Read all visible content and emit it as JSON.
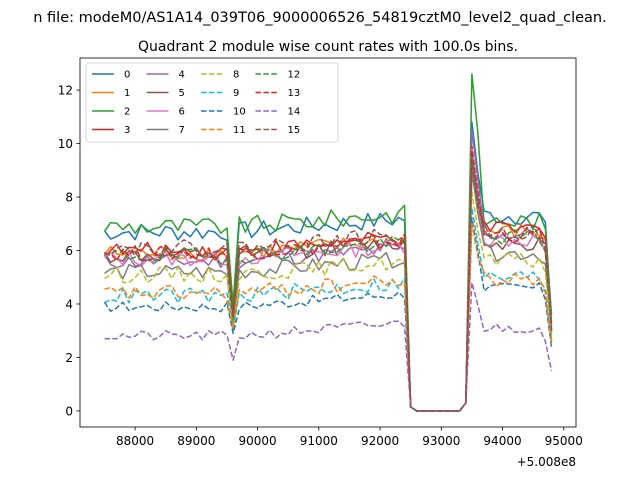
{
  "chart_data": {
    "type": "line",
    "suptitle": "n file: modeM0/AS1A14_039T06_9000006526_54819cztM0_level2_quad_clean.",
    "title": "Quadrant 2 module wise count rates with 100.0s bins.",
    "xlabel": "",
    "ylabel": "",
    "x_offset_label": "+5.008e8",
    "xlim": [
      87100,
      95200
    ],
    "ylim": [
      -0.6,
      13.2
    ],
    "xticks": [
      88000,
      89000,
      90000,
      91000,
      92000,
      93000,
      94000,
      95000
    ],
    "xtick_labels": [
      "88000",
      "89000",
      "90000",
      "91000",
      "92000",
      "93000",
      "94000",
      "95000"
    ],
    "yticks": [
      0,
      2,
      4,
      6,
      8,
      10,
      12
    ],
    "ytick_labels": [
      "0",
      "2",
      "4",
      "6",
      "8",
      "10",
      "12"
    ],
    "x_start": 87500,
    "x_step": 100,
    "legend_position": "upper left",
    "series": [
      {
        "name": "0",
        "color": "#1f77b4",
        "dashed": false,
        "base": 6.7,
        "amp": 0.35,
        "post": 7.3,
        "peak": 10.8,
        "end": 3.3,
        "dip": 3.8
      },
      {
        "name": "1",
        "color": "#ff7f0e",
        "dashed": false,
        "base": 5.9,
        "amp": 0.3,
        "post": 6.7,
        "peak": 9.2,
        "end": 2.6,
        "dip": 3.4
      },
      {
        "name": "2",
        "color": "#2ca02c",
        "dashed": false,
        "base": 6.9,
        "amp": 0.35,
        "post": 7.1,
        "peak": 12.6,
        "end": 3.6,
        "dip": 4.0
      },
      {
        "name": "3",
        "color": "#d62728",
        "dashed": false,
        "base": 6.0,
        "amp": 0.3,
        "post": 6.8,
        "peak": 9.6,
        "end": 3.0,
        "dip": 3.5
      },
      {
        "name": "4",
        "color": "#9467bd",
        "dashed": false,
        "base": 5.6,
        "amp": 0.3,
        "post": 6.6,
        "peak": 10.5,
        "end": 3.1,
        "dip": 3.4
      },
      {
        "name": "5",
        "color": "#8c564b",
        "dashed": false,
        "base": 5.8,
        "amp": 0.3,
        "post": 6.3,
        "peak": 9.0,
        "end": 3.0,
        "dip": 3.3
      },
      {
        "name": "6",
        "color": "#e377c2",
        "dashed": false,
        "base": 5.7,
        "amp": 0.3,
        "post": 6.4,
        "peak": 9.8,
        "end": 3.2,
        "dip": 3.4
      },
      {
        "name": "7",
        "color": "#7f7f7f",
        "dashed": false,
        "base": 5.2,
        "amp": 0.3,
        "post": 5.9,
        "peak": 9.0,
        "end": 2.9,
        "dip": 3.1
      },
      {
        "name": "8",
        "color": "#bcbd22",
        "dashed": true,
        "base": 5.1,
        "amp": 0.3,
        "post": 5.6,
        "peak": 8.2,
        "end": 2.8,
        "dip": 3.2
      },
      {
        "name": "9",
        "color": "#17becf",
        "dashed": true,
        "base": 4.3,
        "amp": 0.3,
        "post": 5.0,
        "peak": 7.6,
        "end": 2.6,
        "dip": 3.0
      },
      {
        "name": "10",
        "color": "#1f77b4",
        "dashed": true,
        "base": 3.9,
        "amp": 0.2,
        "post": 4.6,
        "peak": 7.2,
        "end": 2.4,
        "dip": 2.9
      },
      {
        "name": "11",
        "color": "#ff7f0e",
        "dashed": true,
        "base": 4.4,
        "amp": 0.3,
        "post": 4.9,
        "peak": 7.0,
        "end": 2.5,
        "dip": 3.1
      },
      {
        "name": "12",
        "color": "#2ca02c",
        "dashed": true,
        "base": 5.8,
        "amp": 0.3,
        "post": 6.5,
        "peak": 9.5,
        "end": 3.2,
        "dip": 3.4
      },
      {
        "name": "13",
        "color": "#d62728",
        "dashed": true,
        "base": 5.9,
        "amp": 0.3,
        "post": 6.6,
        "peak": 9.9,
        "end": 3.2,
        "dip": 3.6
      },
      {
        "name": "14",
        "color": "#9467bd",
        "dashed": true,
        "base": 2.8,
        "amp": 0.2,
        "post": 3.1,
        "peak": 4.8,
        "end": 1.5,
        "dip": 1.9
      },
      {
        "name": "15",
        "color": "#8c564b",
        "dashed": true,
        "base": 6.1,
        "amp": 0.3,
        "post": 6.7,
        "peak": 9.3,
        "end": 3.0,
        "dip": 3.5
      }
    ]
  }
}
